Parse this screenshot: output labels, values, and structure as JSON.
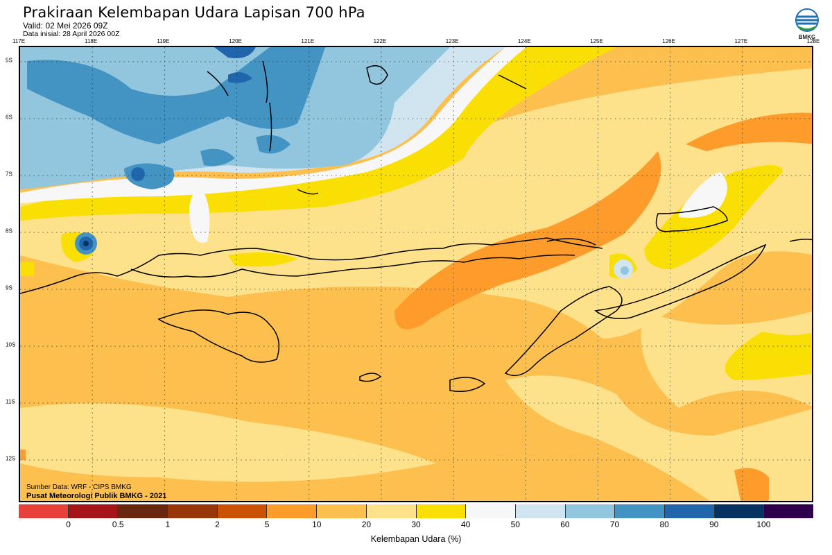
{
  "header": {
    "title": "Prakiraan Kelembapan Udara Lapisan 700 hPa",
    "valid": "Valid: 02 Mei 2026 09Z",
    "initial": "Data inisial: 28 April 2026 00Z",
    "logo_text": "BMKG"
  },
  "axes": {
    "longitudes": [
      "117E",
      "118E",
      "119E",
      "120E",
      "121E",
      "122E",
      "123E",
      "124E",
      "125E",
      "126E",
      "127E",
      "128E"
    ],
    "latitudes": [
      "5S",
      "6S",
      "7S",
      "8S",
      "9S",
      "10S",
      "11S",
      "12S"
    ]
  },
  "map": {
    "source": "Sumber Data: WRF - CIPS BMKG",
    "publisher": "Pusat Meteorologi Publik BMKG - 2021"
  },
  "colorbar": {
    "title": "Kelembapan Udara (%)",
    "labels": [
      "0",
      "0.5",
      "1",
      "2",
      "5",
      "10",
      "20",
      "30",
      "40",
      "50",
      "60",
      "70",
      "80",
      "90",
      "100"
    ],
    "colors": [
      "#e8413a",
      "#a51419",
      "#6b260f",
      "#98360a",
      "#cb5205",
      "#fd9b2b",
      "#fdc04f",
      "#fee18b",
      "#fadf04",
      "#f7f7f7",
      "#d1e5f0",
      "#92c5de",
      "#4393c3",
      "#2166ac",
      "#063263",
      "#2e004c"
    ]
  }
}
